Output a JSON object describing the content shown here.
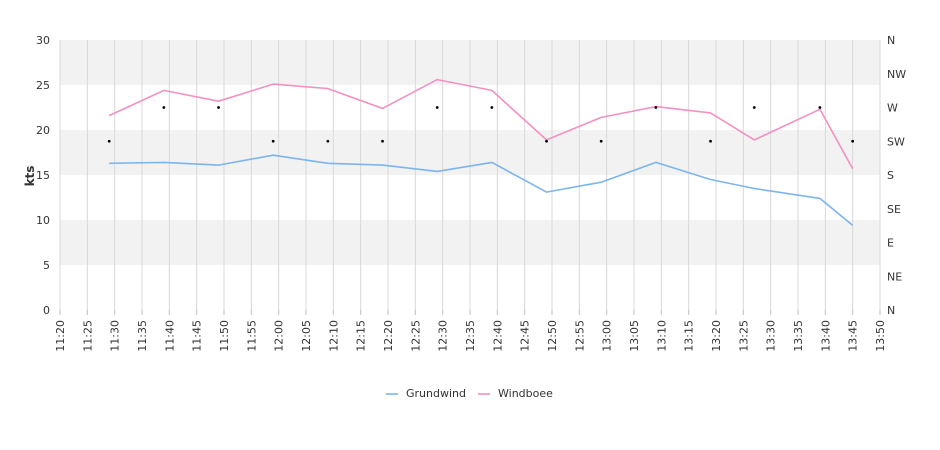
{
  "chart_data": {
    "type": "line",
    "title": "",
    "xlabel": "",
    "ylabel": "kts",
    "ylim": [
      0,
      30
    ],
    "yticks": [
      "0",
      "5",
      "10",
      "15",
      "20",
      "25",
      "30"
    ],
    "x_tick_labels": [
      "11:20",
      "11:25",
      "11:30",
      "11:35",
      "11:40",
      "11:45",
      "11:50",
      "11:55",
      "12:00",
      "12:05",
      "12:10",
      "12:15",
      "12:20",
      "12:25",
      "12:30",
      "12:35",
      "12:40",
      "12:45",
      "12:50",
      "12:55",
      "13:00",
      "13:05",
      "13:10",
      "13:15",
      "13:20",
      "13:25",
      "13:30",
      "13:35",
      "13:40",
      "13:45",
      "13:50"
    ],
    "x_range": [
      "11:20",
      "13:50"
    ],
    "direction_ticks": [
      "N",
      "NE",
      "E",
      "SE",
      "S",
      "SW",
      "W",
      "NW",
      "N"
    ],
    "grid": true,
    "band_colors": [
      "#ffffff",
      "#f2f2f2"
    ],
    "legend_position": "bottom",
    "series": [
      {
        "name": "Grundwind",
        "color": "#7cb5ec",
        "points": [
          [
            "11:29",
            16.3
          ],
          [
            "11:39",
            16.4
          ],
          [
            "11:49",
            16.1
          ],
          [
            "11:59",
            17.2
          ],
          [
            "12:09",
            16.3
          ],
          [
            "12:19",
            16.1
          ],
          [
            "12:29",
            15.4
          ],
          [
            "12:39",
            16.4
          ],
          [
            "12:49",
            13.1
          ],
          [
            "12:59",
            14.2
          ],
          [
            "13:09",
            16.4
          ],
          [
            "13:19",
            14.5
          ],
          [
            "13:27",
            13.5
          ],
          [
            "13:39",
            12.4
          ],
          [
            "13:45",
            9.4
          ]
        ]
      },
      {
        "name": "Windboee",
        "color": "#f391c2",
        "points": [
          [
            "11:29",
            21.6
          ],
          [
            "11:39",
            24.4
          ],
          [
            "11:49",
            23.2
          ],
          [
            "11:59",
            25.1
          ],
          [
            "12:09",
            24.6
          ],
          [
            "12:19",
            22.4
          ],
          [
            "12:29",
            25.6
          ],
          [
            "12:39",
            24.4
          ],
          [
            "12:49",
            18.9
          ],
          [
            "12:59",
            21.4
          ],
          [
            "13:09",
            22.6
          ],
          [
            "13:19",
            21.9
          ],
          [
            "13:27",
            18.9
          ],
          [
            "13:39",
            22.3
          ],
          [
            "13:45",
            15.7
          ]
        ]
      }
    ],
    "direction_series": {
      "marker_color": "#000000",
      "points": [
        [
          "11:29",
          "SW"
        ],
        [
          "11:39",
          "W"
        ],
        [
          "11:49",
          "W"
        ],
        [
          "11:59",
          "SW"
        ],
        [
          "12:09",
          "SW"
        ],
        [
          "12:19",
          "SW"
        ],
        [
          "12:29",
          "W"
        ],
        [
          "12:39",
          "W"
        ],
        [
          "12:49",
          "SW"
        ],
        [
          "12:59",
          "SW"
        ],
        [
          "13:09",
          "W"
        ],
        [
          "13:19",
          "SW"
        ],
        [
          "13:27",
          "W"
        ],
        [
          "13:39",
          "W"
        ],
        [
          "13:45",
          "SW"
        ]
      ]
    }
  }
}
